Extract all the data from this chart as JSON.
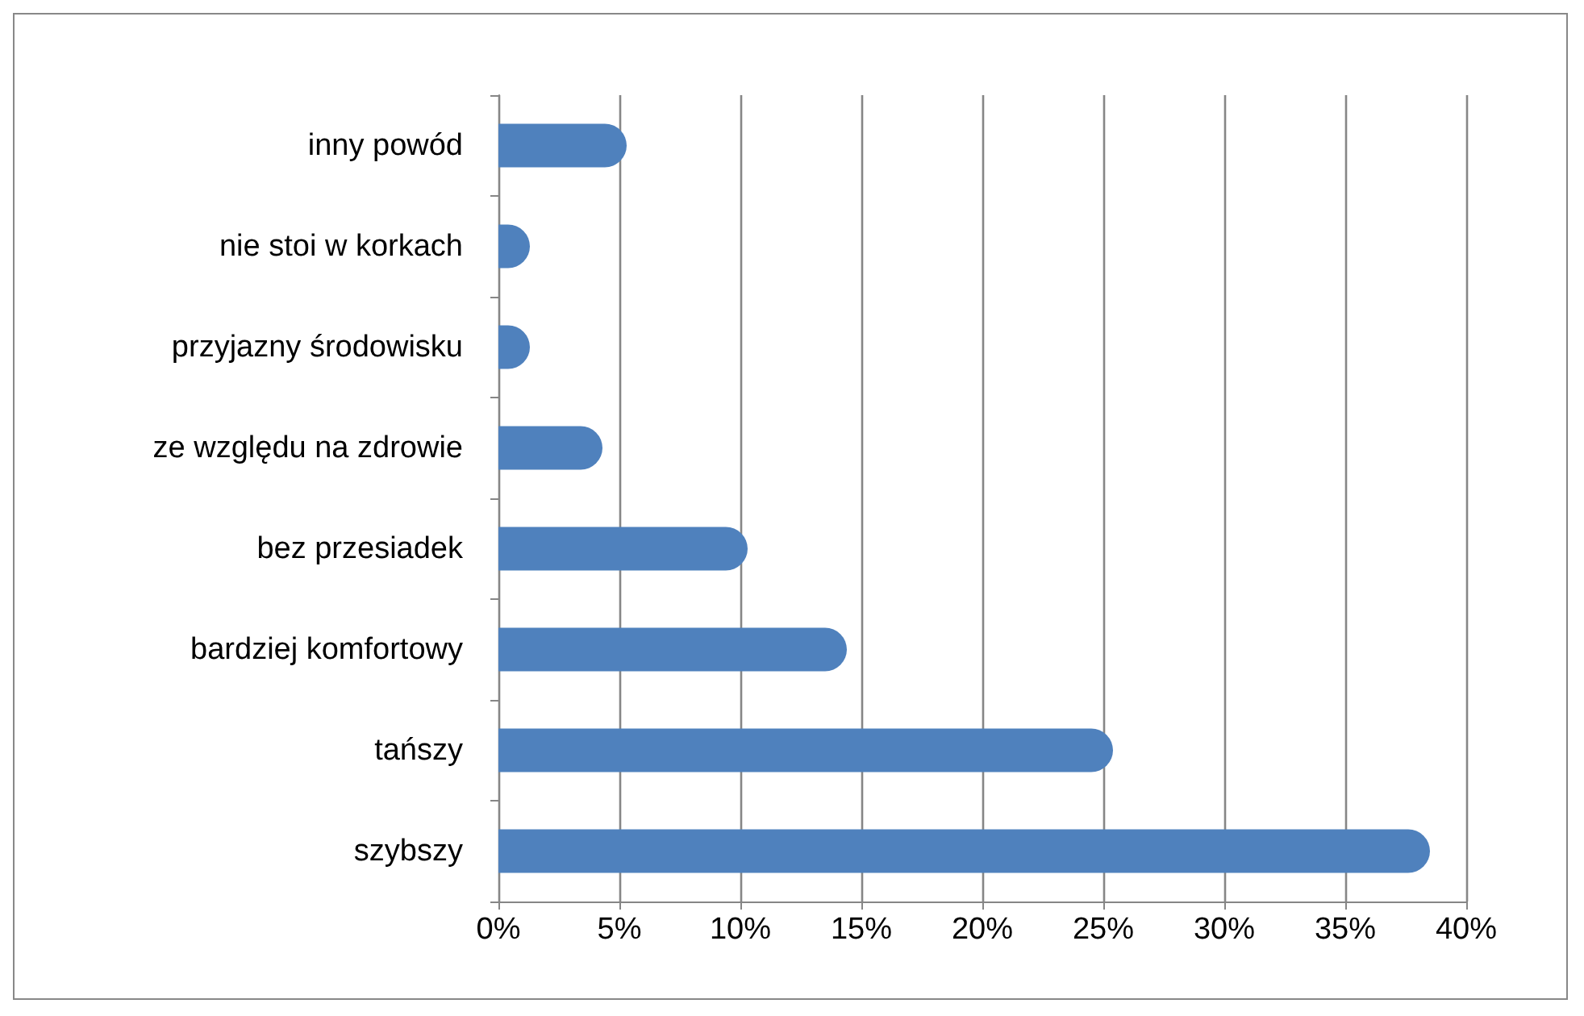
{
  "chart_data": {
    "type": "bar",
    "orientation": "horizontal",
    "categories": [
      "inny powód",
      "nie stoi w korkach",
      "przyjazny środowisku",
      "ze względu na zdrowie",
      "bez przesiadek",
      "bardziej komfortowy",
      "tańszy",
      "szybszy"
    ],
    "values": [
      5.3,
      1.3,
      1.3,
      4.3,
      10.3,
      14.4,
      25.4,
      38.5
    ],
    "color": "#4f81bd",
    "xlim": [
      0,
      40
    ],
    "xticks": [
      {
        "value": 0,
        "label": "0%"
      },
      {
        "value": 5,
        "label": "5%"
      },
      {
        "value": 10,
        "label": "10%"
      },
      {
        "value": 15,
        "label": "15%"
      },
      {
        "value": 20,
        "label": "20%"
      },
      {
        "value": 25,
        "label": "25%"
      },
      {
        "value": 30,
        "label": "30%"
      },
      {
        "value": 35,
        "label": "35%"
      },
      {
        "value": 40,
        "label": "40%"
      }
    ],
    "grid": "x"
  }
}
